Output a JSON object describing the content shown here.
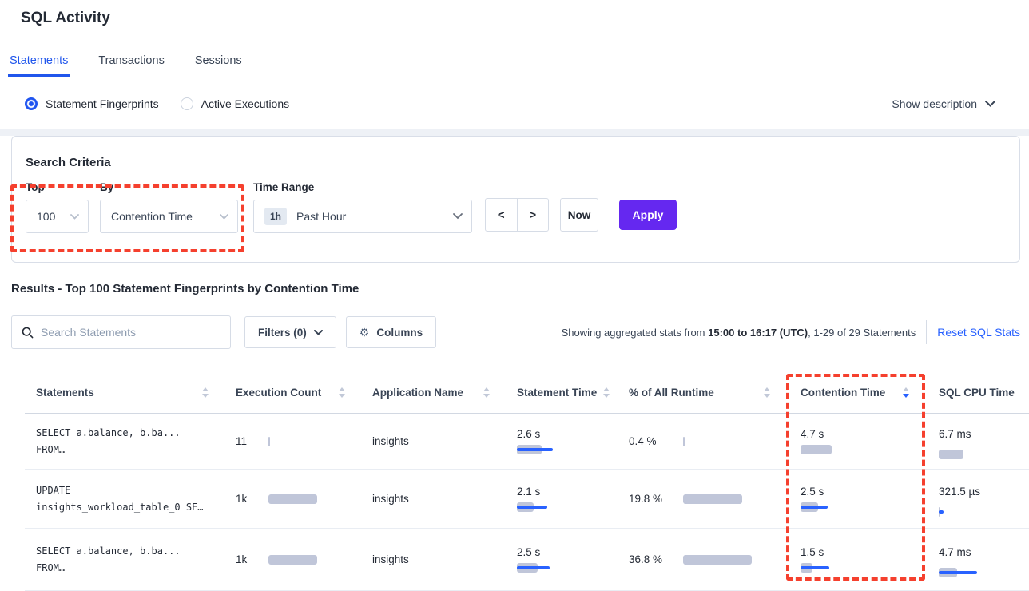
{
  "page_title": "SQL Activity",
  "tabs": [
    {
      "label": "Statements"
    },
    {
      "label": "Transactions"
    },
    {
      "label": "Sessions"
    }
  ],
  "view_mode": {
    "statement_fingerprints": "Statement Fingerprints",
    "active_executions": "Active Executions",
    "show_description": "Show description"
  },
  "search_criteria": {
    "heading": "Search Criteria",
    "top_label": "Top",
    "top_value": "100",
    "by_label": "By",
    "by_value": "Contention Time",
    "time_range_label": "Time Range",
    "time_range_badge": "1h",
    "time_range_value": "Past Hour",
    "prev_icon": "<",
    "next_icon": ">",
    "now_label": "Now",
    "apply_label": "Apply"
  },
  "results": {
    "heading": "Results - Top 100 Statement Fingerprints by Contention Time",
    "search_placeholder": "Search Statements",
    "filters_label": "Filters (0)",
    "columns_label": "Columns",
    "gear_icon": "⚙",
    "showing_prefix": "Showing aggregated stats from ",
    "showing_range": "15:00 to 16:17 (UTC)",
    "showing_suffix": ", 1-29 of 29 Statements",
    "reset_label": "Reset SQL Stats"
  },
  "table": {
    "columns": [
      {
        "label": "Statements",
        "sort": "none"
      },
      {
        "label": "Execution Count",
        "sort": "none"
      },
      {
        "label": "Application Name",
        "sort": "none"
      },
      {
        "label": "Statement Time",
        "sort": "none"
      },
      {
        "label": "% of All Runtime",
        "sort": "none"
      },
      {
        "label": "Contention Time",
        "sort": "desc"
      },
      {
        "label": "SQL CPU Time",
        "sort": "none"
      }
    ],
    "rows": [
      {
        "statement_line1": "SELECT a.balance, b.ba...",
        "statement_line2": "FROM…",
        "execution_count": "11",
        "execution_bar": {
          "gray": 2,
          "blue": 0
        },
        "application_name": "insights",
        "statement_time": "2.6 s",
        "statement_time_bar": {
          "gray": 31,
          "blue": 45
        },
        "runtime_pct": "0.4 %",
        "runtime_pct_bar": {
          "gray": 2,
          "blue": 0
        },
        "contention_time": "4.7 s",
        "contention_bar": {
          "gray": 39,
          "blue": 0
        },
        "sql_cpu_time": "6.7 ms",
        "sql_cpu_bar": {
          "gray": 31,
          "blue": 0
        }
      },
      {
        "statement_line1": "UPDATE",
        "statement_line2": "insights_workload_table_0 SE…",
        "execution_count": "1k",
        "execution_bar": {
          "gray": 61,
          "blue": 0
        },
        "application_name": "insights",
        "statement_time": "2.1 s",
        "statement_time_bar": {
          "gray": 21,
          "blue": 38
        },
        "runtime_pct": "19.8 %",
        "runtime_pct_bar": {
          "gray": 74,
          "blue": 0
        },
        "contention_time": "2.5 s",
        "contention_bar": {
          "gray": 22,
          "blue": 34
        },
        "sql_cpu_time": "321.5 µs",
        "sql_cpu_bar": {
          "gray": 2,
          "blue": 6
        }
      },
      {
        "statement_line1": "SELECT a.balance, b.ba...",
        "statement_line2": "FROM…",
        "execution_count": "1k",
        "execution_bar": {
          "gray": 61,
          "blue": 0
        },
        "application_name": "insights",
        "statement_time": "2.5 s",
        "statement_time_bar": {
          "gray": 26,
          "blue": 41
        },
        "runtime_pct": "36.8 %",
        "runtime_pct_bar": {
          "gray": 86,
          "blue": 0
        },
        "contention_time": "1.5 s",
        "contention_bar": {
          "gray": 15,
          "blue": 36
        },
        "sql_cpu_time": "4.7 ms",
        "sql_cpu_bar": {
          "gray": 23,
          "blue": 48
        }
      }
    ]
  },
  "colors": {
    "primary_blue": "#2056ec",
    "link_blue": "#2760ff",
    "apply_purple": "#6528f0",
    "annotation_red": "#f5402e",
    "bar_gray": "#c0c6d9",
    "bar_blue": "#2962ff"
  }
}
